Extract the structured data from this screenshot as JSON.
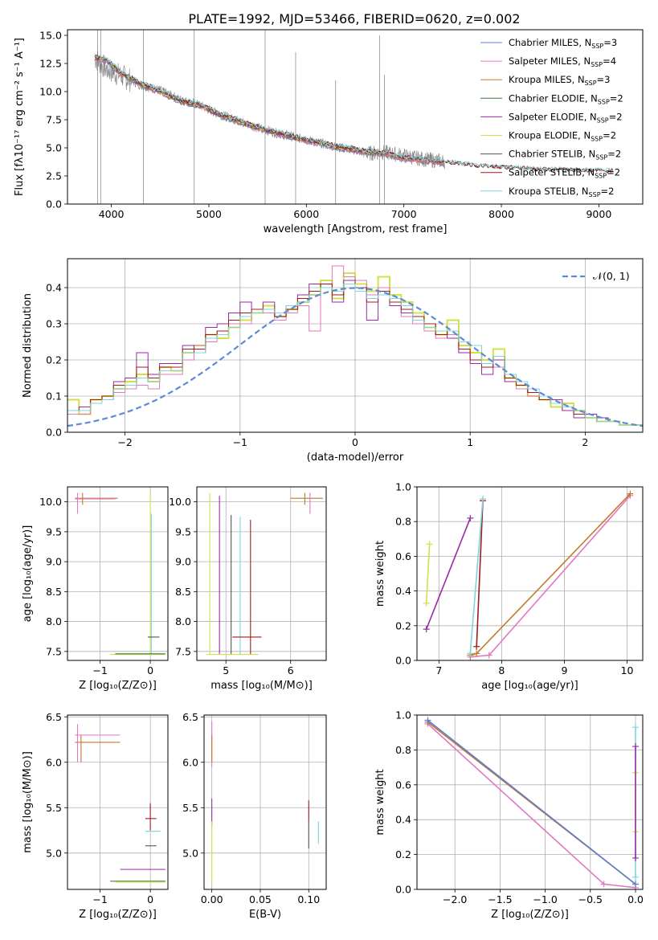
{
  "figure_title": "PLATE=1992, MJD=53466, FIBERID=0620, z=0.002",
  "colors": {
    "chabrier_miles": "#5b7fd6",
    "salpeter_miles": "#e377c2",
    "kroupa_miles": "#c07a2a",
    "chabrier_elodie": "#3c7d3c",
    "salpeter_elodie": "#9a2ba6",
    "kroupa_elodie": "#d4e04a",
    "chabrier_stelib": "#555555",
    "salpeter_stelib": "#a01d1d",
    "kroupa_stelib": "#7fd3de",
    "data_spectrum": "#808080",
    "gaussian": "#5b8ad6",
    "grid": "#b0b0b0"
  },
  "chart_data": [
    {
      "id": "spectrum",
      "type": "line",
      "xlabel": "wavelength [Angstrom, rest frame]",
      "ylabel": "Flux [fλ10⁻¹⁷ erg cm⁻² s⁻¹ A⁻¹]",
      "xlim": [
        3550,
        9450
      ],
      "ylim": [
        0,
        15.5
      ],
      "xticks": [
        4000,
        5000,
        6000,
        7000,
        8000,
        9000
      ],
      "yticks": [
        0.0,
        2.5,
        5.0,
        7.5,
        10.0,
        12.5,
        15.0
      ],
      "grid": false,
      "legend_position": "top-right",
      "legend": [
        {
          "label": "Chabrier MILES, N",
          "sub": "SSP",
          "tail": "=3",
          "color_key": "chabrier_miles"
        },
        {
          "label": "Salpeter MILES, N",
          "sub": "SSP",
          "tail": "=4",
          "color_key": "salpeter_miles"
        },
        {
          "label": "Kroupa MILES, N",
          "sub": "SSP",
          "tail": "=3",
          "color_key": "kroupa_miles"
        },
        {
          "label": "Chabrier ELODIE, N",
          "sub": "SSP",
          "tail": "=2",
          "color_key": "chabrier_elodie"
        },
        {
          "label": "Salpeter ELODIE, N",
          "sub": "SSP",
          "tail": "=2",
          "color_key": "salpeter_elodie"
        },
        {
          "label": "Kroupa ELODIE, N",
          "sub": "SSP",
          "tail": "=2",
          "color_key": "kroupa_elodie"
        },
        {
          "label": "Chabrier STELIB, N",
          "sub": "SSP",
          "tail": "=2",
          "color_key": "chabrier_stelib"
        },
        {
          "label": "Salpeter STELIB, N",
          "sub": "SSP",
          "tail": "=2",
          "color_key": "salpeter_stelib"
        },
        {
          "label": "Kroupa STELIB, N",
          "sub": "SSP",
          "tail": "=2",
          "color_key": "kroupa_stelib"
        }
      ],
      "data_continuum": [
        [
          3830,
          13.0
        ],
        [
          3950,
          12.0
        ],
        [
          4100,
          11.4
        ],
        [
          4300,
          10.6
        ],
        [
          4500,
          10.1
        ],
        [
          4700,
          9.3
        ],
        [
          4900,
          8.8
        ],
        [
          5100,
          8.0
        ],
        [
          5300,
          7.4
        ],
        [
          5500,
          6.8
        ],
        [
          5700,
          6.3
        ],
        [
          5900,
          5.9
        ],
        [
          6100,
          5.5
        ],
        [
          6300,
          5.1
        ],
        [
          6500,
          4.8
        ],
        [
          6600,
          4.5
        ],
        [
          6800,
          4.6
        ],
        [
          7000,
          4.3
        ],
        [
          7200,
          4.0
        ],
        [
          7400,
          3.8
        ]
      ],
      "model_continuum": [
        [
          3830,
          13.0
        ],
        [
          3950,
          12.8
        ],
        [
          4100,
          11.6
        ],
        [
          4300,
          10.7
        ],
        [
          4500,
          10.0
        ],
        [
          4700,
          9.2
        ],
        [
          4900,
          8.8
        ],
        [
          5100,
          8.0
        ],
        [
          5300,
          7.4
        ],
        [
          5500,
          6.8
        ],
        [
          5700,
          6.3
        ],
        [
          5900,
          5.9
        ],
        [
          6100,
          5.5
        ],
        [
          6300,
          5.1
        ],
        [
          6500,
          4.8
        ],
        [
          6800,
          4.5
        ],
        [
          7000,
          4.1
        ],
        [
          7200,
          3.9
        ],
        [
          7400,
          3.7
        ],
        [
          7600,
          3.5
        ],
        [
          7800,
          3.3
        ],
        [
          8000,
          3.2
        ],
        [
          8200,
          3.1
        ],
        [
          8400,
          3.0
        ],
        [
          8700,
          2.95
        ],
        [
          9000,
          2.9
        ],
        [
          9200,
          2.85
        ]
      ]
    },
    {
      "id": "residuals",
      "type": "area",
      "xlabel": "(data-model)/error",
      "ylabel": "Normed distribution",
      "xlim": [
        -2.5,
        2.5
      ],
      "ylim": [
        0.0,
        0.48
      ],
      "xticks": [
        -2,
        -1,
        0,
        1,
        2
      ],
      "xtick_labels": [
        "−2",
        "−1",
        "0",
        "1",
        "2"
      ],
      "yticks": [
        0.0,
        0.1,
        0.2,
        0.3,
        0.4
      ],
      "grid": true,
      "legend_position": "top-right",
      "gaussian_label": "𝒩(0, 1)",
      "bins_start": -2.5,
      "bin_width": 0.1,
      "hist_series": [
        {
          "color_key": "kroupa_elodie",
          "values": [
            0.09,
            0.05,
            0.09,
            0.1,
            0.12,
            0.14,
            0.16,
            0.14,
            0.18,
            0.17,
            0.22,
            0.24,
            0.27,
            0.26,
            0.29,
            0.31,
            0.33,
            0.35,
            0.32,
            0.34,
            0.36,
            0.38,
            0.42,
            0.37,
            0.44,
            0.41,
            0.39,
            0.43,
            0.38,
            0.36,
            0.33,
            0.29,
            0.27,
            0.31,
            0.24,
            0.22,
            0.2,
            0.23,
            0.15,
            0.13,
            0.1,
            0.09,
            0.07,
            0.08,
            0.06,
            0.04,
            0.03,
            0.03,
            0.02,
            0.02
          ]
        },
        {
          "color_key": "salpeter_miles",
          "values": [
            0.05,
            0.05,
            0.08,
            0.09,
            0.11,
            0.12,
            0.13,
            0.12,
            0.16,
            0.16,
            0.2,
            0.24,
            0.25,
            0.28,
            0.3,
            0.3,
            0.34,
            0.33,
            0.31,
            0.33,
            0.35,
            0.28,
            0.4,
            0.46,
            0.43,
            0.42,
            0.38,
            0.4,
            0.36,
            0.32,
            0.3,
            0.28,
            0.26,
            0.27,
            0.22,
            0.2,
            0.19,
            0.18,
            0.14,
            0.12,
            0.1,
            0.09,
            0.08,
            0.06,
            0.05,
            0.04,
            0.03,
            0.03,
            0.02,
            0.02
          ]
        },
        {
          "color_key": "salpeter_elodie",
          "values": [
            0.06,
            0.07,
            0.09,
            0.1,
            0.14,
            0.15,
            0.22,
            0.16,
            0.19,
            0.19,
            0.24,
            0.22,
            0.29,
            0.3,
            0.33,
            0.36,
            0.34,
            0.36,
            0.33,
            0.35,
            0.38,
            0.41,
            0.4,
            0.36,
            0.42,
            0.4,
            0.31,
            0.38,
            0.35,
            0.33,
            0.31,
            0.3,
            0.28,
            0.26,
            0.22,
            0.19,
            0.16,
            0.2,
            0.14,
            0.13,
            0.11,
            0.1,
            0.09,
            0.06,
            0.04,
            0.05,
            0.04,
            0.03,
            0.02,
            0.02
          ]
        },
        {
          "color_key": "salpeter_stelib",
          "values": [
            0.06,
            0.06,
            0.09,
            0.1,
            0.13,
            0.13,
            0.18,
            0.15,
            0.18,
            0.18,
            0.23,
            0.23,
            0.27,
            0.28,
            0.31,
            0.33,
            0.34,
            0.34,
            0.32,
            0.34,
            0.37,
            0.39,
            0.41,
            0.38,
            0.41,
            0.4,
            0.36,
            0.39,
            0.36,
            0.34,
            0.32,
            0.3,
            0.27,
            0.28,
            0.23,
            0.2,
            0.18,
            0.21,
            0.15,
            0.13,
            0.11,
            0.09,
            0.08,
            0.07,
            0.05,
            0.04,
            0.03,
            0.03,
            0.02,
            0.02
          ]
        },
        {
          "color_key": "kroupa_stelib",
          "values": [
            0.06,
            0.06,
            0.08,
            0.09,
            0.12,
            0.13,
            0.15,
            0.14,
            0.17,
            0.17,
            0.22,
            0.22,
            0.26,
            0.27,
            0.29,
            0.32,
            0.33,
            0.34,
            0.33,
            0.35,
            0.36,
            0.38,
            0.4,
            0.39,
            0.41,
            0.39,
            0.37,
            0.38,
            0.37,
            0.35,
            0.31,
            0.29,
            0.28,
            0.28,
            0.25,
            0.24,
            0.19,
            0.21,
            0.16,
            0.14,
            0.12,
            0.1,
            0.08,
            0.07,
            0.06,
            0.04,
            0.03,
            0.03,
            0.02,
            0.02
          ]
        }
      ]
    },
    {
      "id": "age_vs_Z",
      "type": "scatter",
      "xlabel": "Z [log₁₀(Z/Z⊙)]",
      "ylabel": "age  [log₁₀(age/yr)]",
      "xlim": [
        -1.65,
        0.35
      ],
      "ylim": [
        7.35,
        10.25
      ],
      "xticks": [
        -1,
        0
      ],
      "xtick_labels": [
        "−1",
        "0"
      ],
      "yticks": [
        7.5,
        8.0,
        8.5,
        9.0,
        9.5,
        10.0
      ],
      "grid": true
    },
    {
      "id": "age_vs_mass",
      "type": "scatter",
      "xlabel": "mass [log₁₀(M/M⊙)]",
      "ylabel": "",
      "xlim": [
        4.55,
        6.55
      ],
      "ylim": [
        7.35,
        10.25
      ],
      "xticks": [
        5,
        6
      ],
      "xtick_labels": [
        "5",
        "6"
      ],
      "yticks": [
        7.5,
        8.0,
        8.5,
        9.0,
        9.5,
        10.0
      ],
      "grid": true
    },
    {
      "id": "massweight_vs_age",
      "type": "line",
      "xlabel": "age  [log₁₀(age/yr)]",
      "ylabel": "mass weight",
      "xlim": [
        6.65,
        10.25
      ],
      "ylim": [
        0.0,
        1.0
      ],
      "xticks": [
        7,
        8,
        9,
        10
      ],
      "yticks": [
        0.0,
        0.2,
        0.4,
        0.6,
        0.8,
        1.0
      ],
      "grid": true,
      "series": [
        {
          "color_key": "salpeter_miles",
          "x": [
            7.5,
            7.8,
            10.05
          ],
          "y": [
            0.02,
            0.03,
            0.95
          ]
        },
        {
          "color_key": "kroupa_miles",
          "x": [
            7.5,
            7.6,
            10.05
          ],
          "y": [
            0.03,
            0.04,
            0.96
          ]
        },
        {
          "color_key": "salpeter_elodie",
          "x": [
            6.8,
            7.5
          ],
          "y": [
            0.18,
            0.82
          ]
        },
        {
          "color_key": "kroupa_elodie",
          "x": [
            6.8,
            6.85
          ],
          "y": [
            0.33,
            0.67
          ]
        },
        {
          "color_key": "salpeter_stelib",
          "x": [
            7.6,
            7.7
          ],
          "y": [
            0.08,
            0.92
          ]
        },
        {
          "color_key": "kroupa_stelib",
          "x": [
            7.5,
            7.7
          ],
          "y": [
            0.04,
            0.93
          ]
        }
      ]
    },
    {
      "id": "mass_vs_Z",
      "type": "scatter",
      "xlabel": "Z [log₁₀(Z/Z⊙)]",
      "ylabel": "mass [log₁₀(M/M⊙)]",
      "xlim": [
        -1.65,
        0.35
      ],
      "ylim": [
        4.6,
        6.52
      ],
      "xticks": [
        -1,
        0
      ],
      "xtick_labels": [
        "−1",
        "0"
      ],
      "yticks": [
        5.0,
        5.5,
        6.0,
        6.5
      ],
      "grid": true
    },
    {
      "id": "mass_vs_ebv",
      "type": "scatter",
      "xlabel": "E(B-V)",
      "ylabel": "",
      "xlim": [
        -0.008,
        0.118
      ],
      "ylim": [
        4.6,
        6.52
      ],
      "xticks": [
        0.0,
        0.05,
        0.1
      ],
      "xtick_labels": [
        "0.00",
        "0.05",
        "0.10"
      ],
      "yticks": [
        5.0,
        5.5,
        6.0,
        6.5
      ],
      "grid": true
    },
    {
      "id": "massweight_vs_Z",
      "type": "line",
      "xlabel": "Z [log₁₀(Z/Z⊙)]",
      "ylabel": "mass weight",
      "xlim": [
        -2.42,
        0.08
      ],
      "ylim": [
        0.0,
        1.0
      ],
      "xticks": [
        -2.0,
        -1.5,
        -1.0,
        -0.5,
        0.0
      ],
      "xtick_labels": [
        "−2.0",
        "−1.5",
        "−1.0",
        "−0.5",
        "0.0"
      ],
      "yticks": [
        0.0,
        0.2,
        0.4,
        0.6,
        0.8,
        1.0
      ],
      "grid": true,
      "series": [
        {
          "color_key": "salpeter_miles",
          "x": [
            -2.3,
            -0.35,
            0.0
          ],
          "y": [
            0.95,
            0.03,
            0.01
          ]
        },
        {
          "color_key": "kroupa_miles",
          "x": [
            -2.3,
            0.0
          ],
          "y": [
            0.96,
            0.03
          ]
        },
        {
          "color_key": "chabrier_miles",
          "x": [
            -2.3,
            0.0
          ],
          "y": [
            0.97,
            0.03
          ]
        },
        {
          "color_key": "kroupa_stelib",
          "x": [
            0.0,
            0.0
          ],
          "y": [
            0.07,
            0.93
          ]
        },
        {
          "color_key": "kroupa_elodie",
          "x": [
            0.0,
            0.0
          ],
          "y": [
            0.33,
            0.67
          ]
        },
        {
          "color_key": "salpeter_elodie",
          "x": [
            0.0,
            0.0
          ],
          "y": [
            0.18,
            0.82
          ]
        }
      ]
    }
  ]
}
